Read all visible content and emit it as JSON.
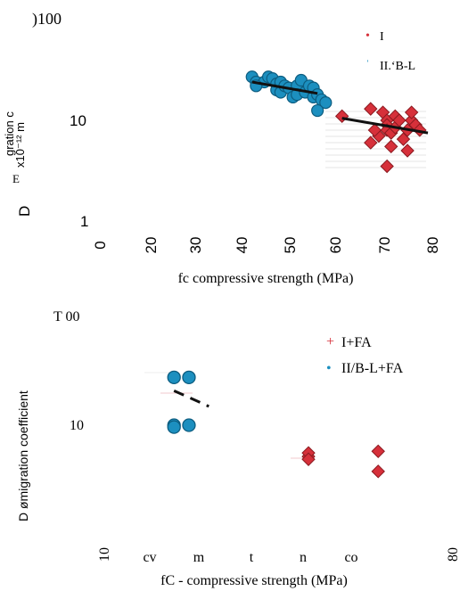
{
  "chart_data": [
    {
      "type": "scatter",
      "title": "",
      "top_tick_label": ")100",
      "xlabel": "fc compressive strength (MPa)",
      "ylabel_lines": [
        "D",
        "gration c",
        "x10⁻¹² m",
        "E"
      ],
      "x_tick_labels": [
        "0",
        "20",
        "30",
        "40",
        "50",
        "60",
        "70",
        "80"
      ],
      "y_tick_labels": [
        "10",
        "1"
      ],
      "y_scale": "log",
      "ylim": [
        1,
        100
      ],
      "legend_position": "top-right",
      "colors": {
        "red": "#d6303a",
        "blue": "#1c8fbf"
      },
      "series": [
        {
          "name": "I",
          "color": "#d6303a",
          "marker": "diamond",
          "x": [
            59,
            66,
            66,
            69,
            70,
            70,
            70,
            71,
            71,
            72,
            72,
            73,
            74,
            75,
            75,
            76,
            76,
            77,
            78,
            68,
            70,
            67
          ],
          "y": [
            11,
            13,
            6,
            12,
            10,
            9,
            8,
            7.5,
            5.5,
            11,
            8.5,
            10,
            6.5,
            5,
            8,
            10,
            12,
            9,
            8,
            7,
            3.5,
            8
          ],
          "trend": {
            "x": [
              59,
              80
            ],
            "y": [
              10.5,
              7.5
            ]
          }
        },
        {
          "name": "II.‘B-L",
          "color": "#1c8fbf",
          "marker": "circle",
          "x": [
            37,
            38,
            40,
            41,
            42,
            43,
            43,
            44,
            44,
            45,
            46,
            47,
            48,
            48,
            49,
            50,
            51,
            52,
            52,
            53,
            54,
            55,
            53,
            38
          ],
          "y": [
            27,
            24,
            24,
            27,
            26,
            23,
            20,
            24,
            19,
            22,
            21,
            17,
            22,
            18,
            25,
            19,
            22,
            21,
            17,
            18,
            16,
            15,
            12.5,
            22
          ],
          "trend": {
            "x": [
              37,
              53
            ],
            "y": [
              24,
              18.5
            ]
          }
        }
      ]
    },
    {
      "type": "scatter",
      "title": "",
      "top_tick_label": "T 00",
      "xlabel": "fC - compressive strength (MPa)",
      "ylabel": "D ømigration coefficient",
      "x_tick_labels": [
        "10",
        "cv",
        "m",
        "t",
        "n",
        "co",
        "80"
      ],
      "y_tick_labels": [
        "10"
      ],
      "y_scale": "log",
      "ylim": [
        1,
        100
      ],
      "legend_position": "top-right",
      "series": [
        {
          "name": "I+FA",
          "color": "#d6303a",
          "marker": "diamond",
          "x": [
            51,
            51,
            51,
            65,
            65
          ],
          "y": [
            5.1,
            5.5,
            4.8,
            5.7,
            3.7
          ]
        },
        {
          "name": "II/B-L+FA",
          "color": "#1c8fbf",
          "marker": "circle",
          "x": [
            24,
            27,
            24,
            27,
            24
          ],
          "y": [
            28,
            28,
            10,
            10,
            9.6
          ]
        }
      ],
      "trend": {
        "x": [
          24,
          31
        ],
        "y": [
          21,
          15
        ]
      }
    }
  ]
}
